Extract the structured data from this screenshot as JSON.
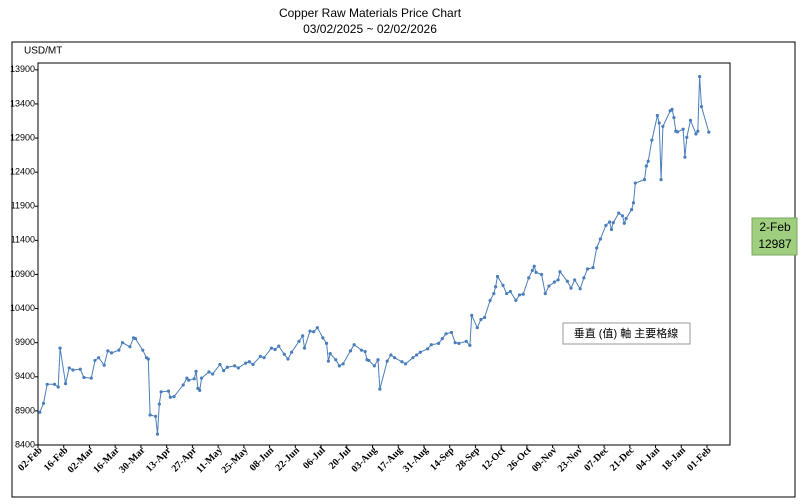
{
  "chart_data": {
    "type": "line",
    "title": "Copper Raw Materials Price Chart",
    "subtitle": "03/02/2025 ~ 02/02/2026",
    "y_label": "USD/MT",
    "color": "#4a7ebb",
    "grid": false,
    "ylim": [
      8400,
      14000
    ],
    "yticks": [
      8400,
      8900,
      9400,
      9900,
      10400,
      10900,
      11400,
      11900,
      12400,
      12900,
      13400,
      13900
    ],
    "xticks": [
      "02-Feb",
      "16-Feb",
      "02-Mar",
      "16-Mar",
      "30-Mar",
      "13-Apr",
      "27-Apr",
      "11-May",
      "25-May",
      "08-Jun",
      "22-Jun",
      "06-Jul",
      "20-Jul",
      "03-Aug",
      "17-Aug",
      "31-Aug",
      "14-Sep",
      "28-Sep",
      "12-Oct",
      "26-Oct",
      "09-Nov",
      "23-Nov",
      "07-Dec",
      "21-Dec",
      "04-Jan",
      "18-Jan",
      "01-Feb"
    ],
    "x": [
      "03-Feb",
      "05-Feb",
      "07-Feb",
      "11-Feb",
      "13-Feb",
      "14-Feb",
      "17-Feb",
      "19-Feb",
      "21-Feb",
      "25-Feb",
      "27-Feb",
      "03-Mar",
      "05-Mar",
      "07-Mar",
      "10-Mar",
      "12-Mar",
      "14-Mar",
      "18-Mar",
      "20-Mar",
      "24-Mar",
      "26-Mar",
      "27-Mar",
      "31-Mar",
      "02-Apr",
      "03-Apr",
      "04-Apr",
      "07-Apr",
      "08-Apr",
      "09-Apr",
      "10-Apr",
      "14-Apr",
      "15-Apr",
      "17-Apr",
      "22-Apr",
      "24-Apr",
      "25-Apr",
      "28-Apr",
      "29-Apr",
      "30-Apr",
      "01-May",
      "02-May",
      "06-May",
      "08-May",
      "12-May",
      "14-May",
      "16-May",
      "20-May",
      "22-May",
      "26-May",
      "28-May",
      "30-May",
      "03-Jun",
      "05-Jun",
      "09-Jun",
      "11-Jun",
      "13-Jun",
      "16-Jun",
      "18-Jun",
      "20-Jun",
      "24-Jun",
      "26-Jun",
      "27-Jun",
      "30-Jun",
      "02-Jul",
      "04-Jul",
      "07-Jul",
      "09-Jul",
      "10-Jul",
      "11-Jul",
      "14-Jul",
      "16-Jul",
      "18-Jul",
      "22-Jul",
      "24-Jul",
      "28-Jul",
      "30-Jul",
      "31-Jul",
      "01-Aug",
      "04-Aug",
      "06-Aug",
      "07-Aug",
      "11-Aug",
      "13-Aug",
      "15-Aug",
      "19-Aug",
      "21-Aug",
      "25-Aug",
      "27-Aug",
      "29-Aug",
      "02-Sep",
      "04-Sep",
      "08-Sep",
      "10-Sep",
      "12-Sep",
      "15-Sep",
      "17-Sep",
      "19-Sep",
      "23-Sep",
      "25-Sep",
      "26-Sep",
      "29-Sep",
      "01-Oct",
      "03-Oct",
      "06-Oct",
      "08-Oct",
      "09-Oct",
      "10-Oct",
      "13-Oct",
      "15-Oct",
      "17-Oct",
      "20-Oct",
      "22-Oct",
      "24-Oct",
      "27-Oct",
      "29-Oct",
      "30-Oct",
      "31-Oct",
      "03-Nov",
      "05-Nov",
      "07-Nov",
      "10-Nov",
      "12-Nov",
      "13-Nov",
      "17-Nov",
      "19-Nov",
      "21-Nov",
      "24-Nov",
      "26-Nov",
      "28-Nov",
      "01-Dec",
      "03-Dec",
      "05-Dec",
      "08-Dec",
      "10-Dec",
      "11-Dec",
      "12-Dec",
      "15-Dec",
      "17-Dec",
      "18-Dec",
      "19-Dec",
      "22-Dec",
      "23-Dec",
      "24-Dec",
      "29-Dec",
      "30-Dec",
      "31-Dec",
      "02-Jan",
      "05-Jan",
      "06-Jan",
      "07-Jan",
      "08-Jan",
      "12-Jan",
      "13-Jan",
      "14-Jan",
      "15-Jan",
      "16-Jan",
      "19-Jan",
      "20-Jan",
      "21-Jan",
      "23-Jan",
      "26-Jan",
      "27-Jan",
      "28-Jan",
      "29-Jan",
      "02-Feb"
    ],
    "values": [
      8880,
      9010,
      9290,
      9290,
      9250,
      9820,
      9300,
      9530,
      9500,
      9510,
      9390,
      9380,
      9640,
      9680,
      9570,
      9780,
      9750,
      9790,
      9900,
      9840,
      9970,
      9960,
      9790,
      9680,
      9660,
      8840,
      8820,
      8560,
      9000,
      9180,
      9190,
      9100,
      9110,
      9280,
      9380,
      9350,
      9370,
      9480,
      9230,
      9200,
      9380,
      9470,
      9440,
      9580,
      9490,
      9540,
      9560,
      9530,
      9600,
      9620,
      9580,
      9700,
      9680,
      9820,
      9800,
      9850,
      9730,
      9660,
      9760,
      9920,
      10000,
      9820,
      10070,
      10060,
      10120,
      9970,
      9890,
      9630,
      9740,
      9650,
      9560,
      9590,
      9780,
      9870,
      9790,
      9770,
      9650,
      9640,
      9560,
      9650,
      9220,
      9630,
      9720,
      9680,
      9620,
      9590,
      9680,
      9720,
      9760,
      9810,
      9870,
      9890,
      9960,
      10030,
      10050,
      9900,
      9890,
      9920,
      9860,
      10300,
      10120,
      10240,
      10270,
      10520,
      10620,
      10720,
      10870,
      10740,
      10620,
      10650,
      10520,
      10600,
      10610,
      10850,
      10960,
      11020,
      10930,
      10900,
      10620,
      10730,
      10790,
      10820,
      10940,
      10800,
      10700,
      10820,
      10690,
      10850,
      10980,
      11000,
      11290,
      11420,
      11620,
      11670,
      11560,
      11660,
      11800,
      11760,
      11650,
      11720,
      11850,
      11950,
      12240,
      12290,
      12490,
      12560,
      12870,
      13230,
      13120,
      12290,
      13070,
      13300,
      13320,
      13200,
      13000,
      12990,
      13030,
      12620,
      12910,
      13160,
      12960,
      13000,
      13800,
      13360,
      12987
    ],
    "callout": {
      "date": "2-Feb",
      "value": 12987
    },
    "tooltip": "垂直 (值) 軸 主要格線"
  }
}
